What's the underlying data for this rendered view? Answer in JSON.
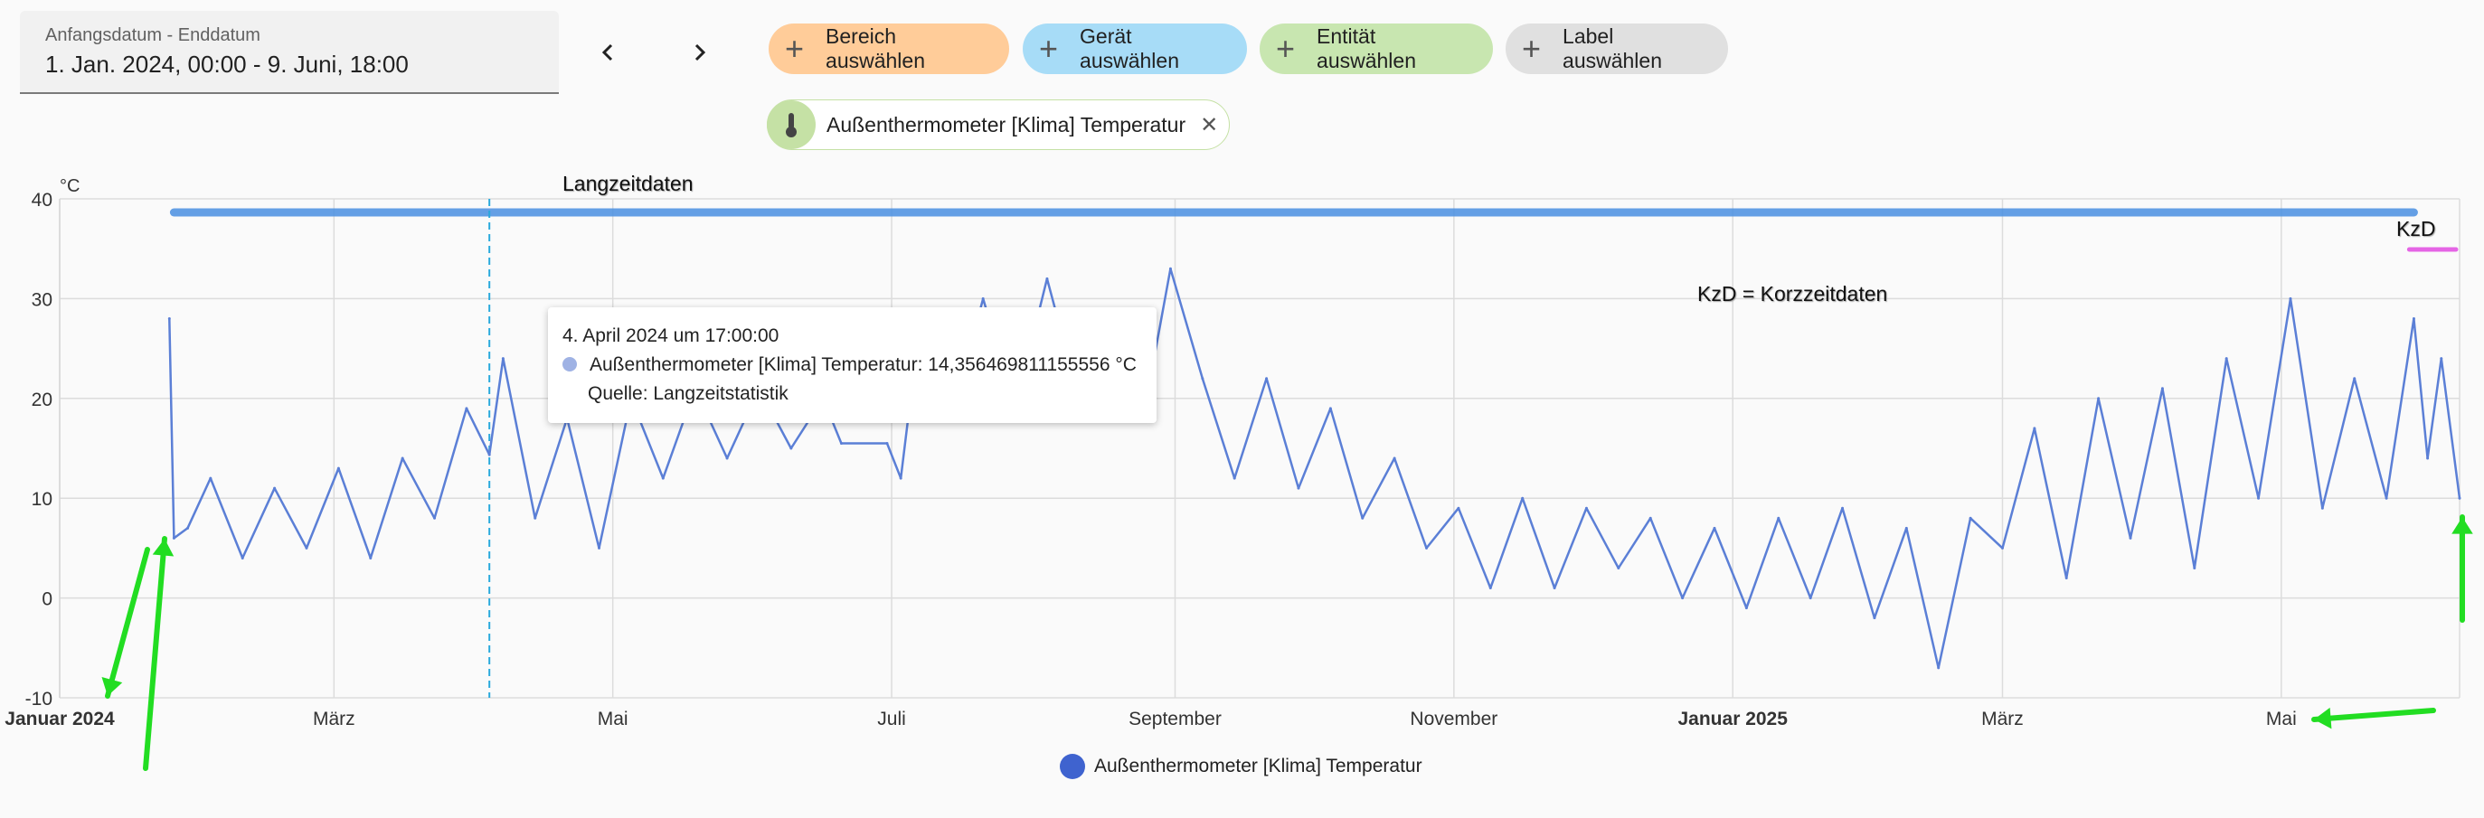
{
  "date_range": {
    "label": "Anfangsdatum - Enddatum",
    "value": "1. Jan. 2024, 00:00 - 9. Juni, 18:00"
  },
  "filters": [
    {
      "label": "Bereich auswählen",
      "color": "#ffcc99"
    },
    {
      "label": "Gerät auswählen",
      "color": "#a7dcf7"
    },
    {
      "label": "Entität auswählen",
      "color": "#c8e6b0"
    },
    {
      "label": "Label auswählen",
      "color": "#e0e0e0"
    }
  ],
  "entity_chip": {
    "label": "Außenthermometer [Klima] Temperatur",
    "icon": "thermometer-icon",
    "remove": "✕"
  },
  "tooltip": {
    "date": "4. April 2024 um 17:00:00",
    "value": "Außenthermometer [Klima] Temperatur: 14,356469811155556 °C",
    "source": "Quelle: Langzeitstatistik"
  },
  "legend": {
    "label": "Außenthermometer [Klima] Temperatur"
  },
  "annotations": {
    "long_term": "Langzeitdaten",
    "short_term": "KzD",
    "note": "KzD = Korzzeitdaten"
  },
  "colors": {
    "series": "#5b7fd6",
    "short_term_series": "#3558c8",
    "long_term_bar": "#4a90e2",
    "short_term_bar": "#e040e0",
    "arrows": "#22dd22",
    "crosshair": "#29a9dd"
  },
  "chart_data": {
    "type": "line",
    "unit": "°C",
    "ylim": [
      -10,
      40
    ],
    "yticks": [
      -10,
      0,
      10,
      20,
      30,
      40
    ],
    "xlim": [
      "2024-01-01",
      "2025-06-09"
    ],
    "xticks": [
      {
        "label": "Januar 2024",
        "date": "2024-01-01",
        "bold": true
      },
      {
        "label": "März",
        "date": "2024-03-01",
        "bold": false
      },
      {
        "label": "Mai",
        "date": "2024-05-01",
        "bold": false
      },
      {
        "label": "Juli",
        "date": "2024-07-01",
        "bold": false
      },
      {
        "label": "September",
        "date": "2024-09-01",
        "bold": false
      },
      {
        "label": "November",
        "date": "2024-11-01",
        "bold": false
      },
      {
        "label": "Januar 2025",
        "date": "2025-01-01",
        "bold": true
      },
      {
        "label": "März",
        "date": "2025-03-01",
        "bold": false
      },
      {
        "label": "Mai",
        "date": "2025-05-01",
        "bold": false
      }
    ],
    "grid": true,
    "legend_position": "bottom",
    "crosshair_date": "2024-04-04",
    "series": [
      {
        "name": "Außenthermometer [Klima] Temperatur",
        "points": [
          [
            "2024-01-25",
            28
          ],
          [
            "2024-01-26",
            6
          ],
          [
            "2024-01-29",
            7
          ],
          [
            "2024-02-03",
            12
          ],
          [
            "2024-02-10",
            4
          ],
          [
            "2024-02-17",
            11
          ],
          [
            "2024-02-24",
            5
          ],
          [
            "2024-03-02",
            13
          ],
          [
            "2024-03-09",
            4
          ],
          [
            "2024-03-16",
            14
          ],
          [
            "2024-03-23",
            8
          ],
          [
            "2024-03-30",
            19
          ],
          [
            "2024-04-04",
            14.36
          ],
          [
            "2024-04-07",
            24
          ],
          [
            "2024-04-14",
            8
          ],
          [
            "2024-04-21",
            18
          ],
          [
            "2024-04-28",
            5
          ],
          [
            "2024-05-05",
            20
          ],
          [
            "2024-05-12",
            12
          ],
          [
            "2024-05-19",
            21
          ],
          [
            "2024-05-26",
            14
          ],
          [
            "2024-06-02",
            21
          ],
          [
            "2024-06-09",
            15
          ],
          [
            "2024-06-16",
            20
          ],
          [
            "2024-06-20",
            15.5
          ],
          [
            "2024-06-30",
            15.5
          ],
          [
            "2024-07-03",
            12
          ],
          [
            "2024-07-07",
            27
          ],
          [
            "2024-07-14",
            18
          ],
          [
            "2024-07-21",
            30
          ],
          [
            "2024-07-28",
            19
          ],
          [
            "2024-08-04",
            32
          ],
          [
            "2024-08-11",
            20
          ],
          [
            "2024-08-18",
            29
          ],
          [
            "2024-08-25",
            18
          ],
          [
            "2024-08-31",
            33
          ],
          [
            "2024-09-07",
            22
          ],
          [
            "2024-09-14",
            12
          ],
          [
            "2024-09-21",
            22
          ],
          [
            "2024-09-28",
            11
          ],
          [
            "2024-10-05",
            19
          ],
          [
            "2024-10-12",
            8
          ],
          [
            "2024-10-19",
            14
          ],
          [
            "2024-10-26",
            5
          ],
          [
            "2024-11-02",
            9
          ],
          [
            "2024-11-09",
            1
          ],
          [
            "2024-11-16",
            10
          ],
          [
            "2024-11-23",
            1
          ],
          [
            "2024-11-30",
            9
          ],
          [
            "2024-12-07",
            3
          ],
          [
            "2024-12-14",
            8
          ],
          [
            "2024-12-21",
            0
          ],
          [
            "2024-12-28",
            7
          ],
          [
            "2025-01-04",
            -1
          ],
          [
            "2025-01-11",
            8
          ],
          [
            "2025-01-18",
            0
          ],
          [
            "2025-01-25",
            9
          ],
          [
            "2025-02-01",
            -2
          ],
          [
            "2025-02-08",
            7
          ],
          [
            "2025-02-15",
            -7
          ],
          [
            "2025-02-22",
            8
          ],
          [
            "2025-03-01",
            5
          ],
          [
            "2025-03-08",
            17
          ],
          [
            "2025-03-15",
            2
          ],
          [
            "2025-03-22",
            20
          ],
          [
            "2025-03-29",
            6
          ],
          [
            "2025-04-05",
            21
          ],
          [
            "2025-04-12",
            3
          ],
          [
            "2025-04-19",
            24
          ],
          [
            "2025-04-26",
            10
          ],
          [
            "2025-05-03",
            30
          ],
          [
            "2025-05-10",
            9
          ],
          [
            "2025-05-17",
            22
          ],
          [
            "2025-05-24",
            10
          ],
          [
            "2025-05-30",
            28
          ],
          [
            "2025-06-02",
            14
          ],
          [
            "2025-06-05",
            24
          ],
          [
            "2025-06-09",
            10
          ]
        ]
      }
    ]
  }
}
